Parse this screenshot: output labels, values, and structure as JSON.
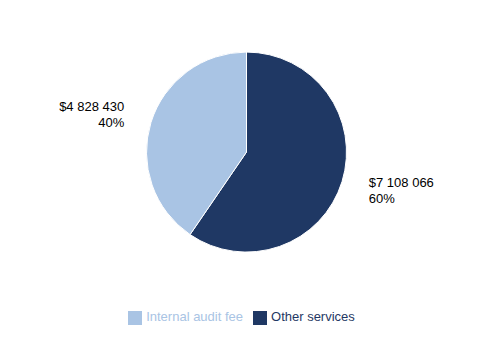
{
  "chart_data": {
    "type": "pie",
    "categories": [
      "Other services",
      "Internal audit fee"
    ],
    "values": [
      7108066,
      4828430
    ],
    "value_labels": [
      "$7 108 066\n60%",
      "$4 828 430\n40%"
    ],
    "colors": [
      "#1f3864",
      "#a9c4e4"
    ],
    "data_labels": true,
    "legend": "bottom"
  }
}
